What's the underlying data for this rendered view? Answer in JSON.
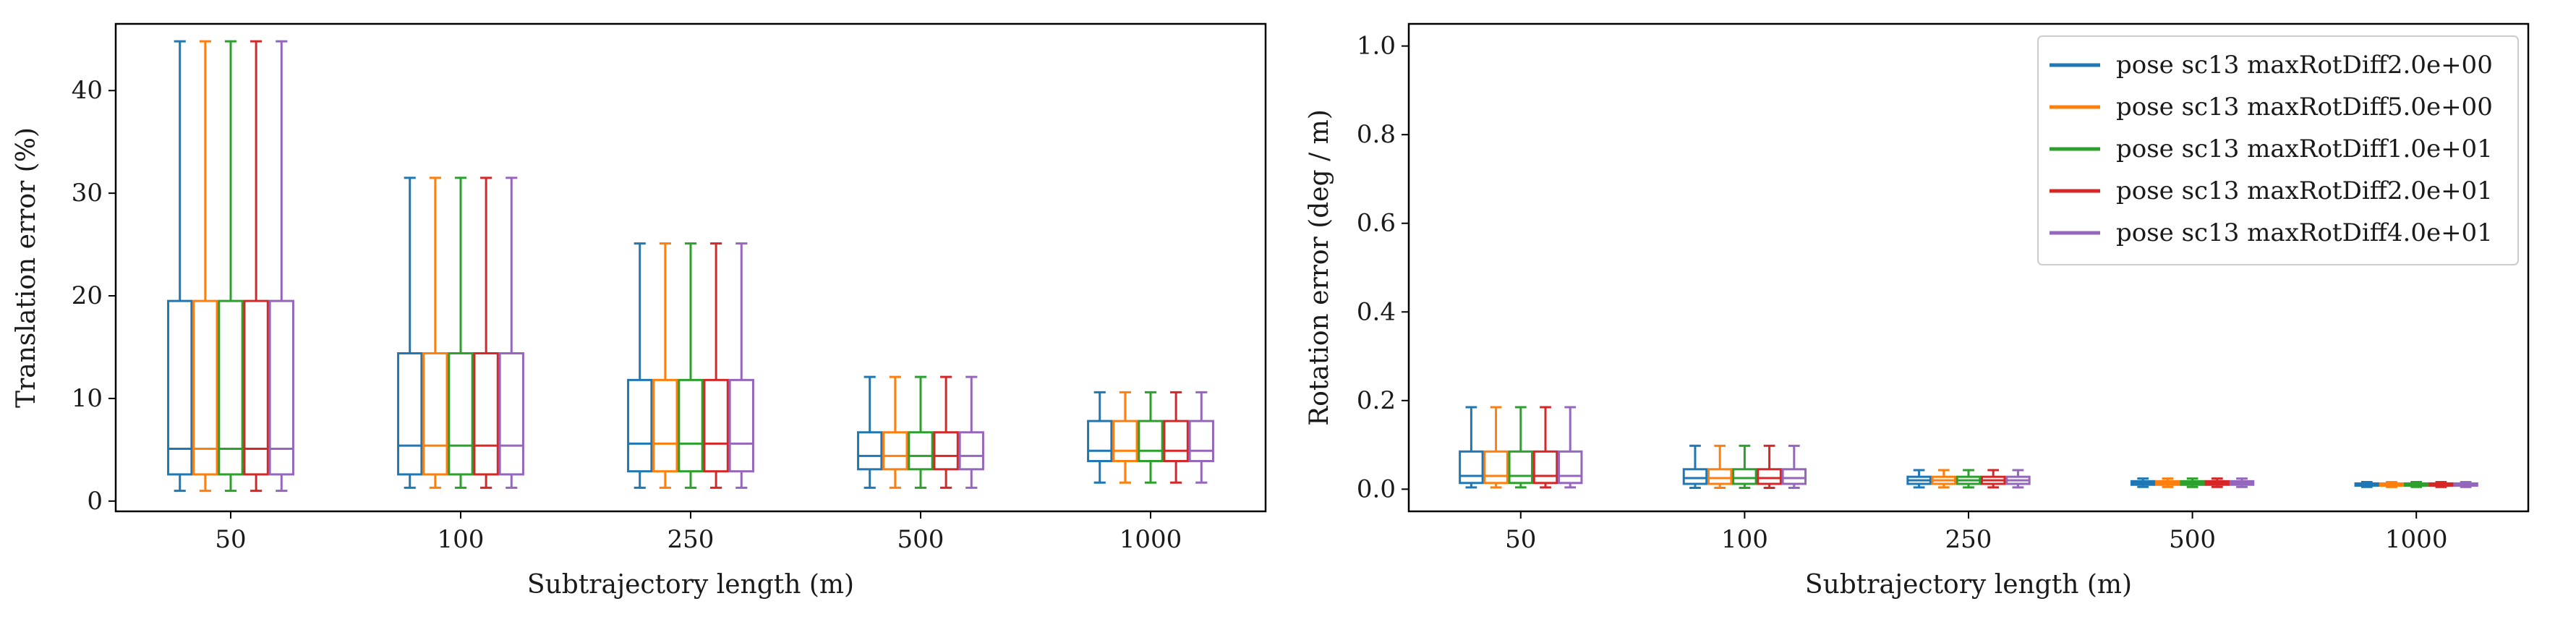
{
  "chart_data": [
    {
      "type": "box",
      "xlabel": "Subtrajectory length (m)",
      "ylabel": "Translation error (%)",
      "categories": [
        "50",
        "100",
        "250",
        "500",
        "1000"
      ],
      "ylim": [
        -1,
        46.5
      ],
      "yticks": [
        0,
        10,
        20,
        30,
        40
      ],
      "grid": false,
      "series": [
        {
          "name": "pose sc13 maxRotDiff2.0e+00",
          "color": "#1f77b4",
          "boxes": [
            {
              "whislo": 1.0,
              "q1": 2.6,
              "med": 5.1,
              "q3": 19.5,
              "whishi": 44.8
            },
            {
              "whislo": 1.3,
              "q1": 2.6,
              "med": 5.4,
              "q3": 14.4,
              "whishi": 31.5
            },
            {
              "whislo": 1.3,
              "q1": 2.9,
              "med": 5.6,
              "q3": 11.8,
              "whishi": 25.1
            },
            {
              "whislo": 1.3,
              "q1": 3.1,
              "med": 4.4,
              "q3": 6.7,
              "whishi": 12.1
            },
            {
              "whislo": 1.8,
              "q1": 3.9,
              "med": 4.9,
              "q3": 7.8,
              "whishi": 10.6
            }
          ]
        },
        {
          "name": "pose sc13 maxRotDiff5.0e+00",
          "color": "#ff7f0e",
          "boxes": [
            {
              "whislo": 1.0,
              "q1": 2.6,
              "med": 5.1,
              "q3": 19.5,
              "whishi": 44.8
            },
            {
              "whislo": 1.3,
              "q1": 2.6,
              "med": 5.4,
              "q3": 14.4,
              "whishi": 31.5
            },
            {
              "whislo": 1.3,
              "q1": 2.9,
              "med": 5.6,
              "q3": 11.8,
              "whishi": 25.1
            },
            {
              "whislo": 1.3,
              "q1": 3.1,
              "med": 4.4,
              "q3": 6.7,
              "whishi": 12.1
            },
            {
              "whislo": 1.8,
              "q1": 3.9,
              "med": 4.9,
              "q3": 7.8,
              "whishi": 10.6
            }
          ]
        },
        {
          "name": "pose sc13 maxRotDiff1.0e+01",
          "color": "#2ca02c",
          "boxes": [
            {
              "whislo": 1.0,
              "q1": 2.6,
              "med": 5.1,
              "q3": 19.5,
              "whishi": 44.8
            },
            {
              "whislo": 1.3,
              "q1": 2.6,
              "med": 5.4,
              "q3": 14.4,
              "whishi": 31.5
            },
            {
              "whislo": 1.3,
              "q1": 2.9,
              "med": 5.6,
              "q3": 11.8,
              "whishi": 25.1
            },
            {
              "whislo": 1.3,
              "q1": 3.1,
              "med": 4.4,
              "q3": 6.7,
              "whishi": 12.1
            },
            {
              "whislo": 1.8,
              "q1": 3.9,
              "med": 4.9,
              "q3": 7.8,
              "whishi": 10.6
            }
          ]
        },
        {
          "name": "pose sc13 maxRotDiff2.0e+01",
          "color": "#d62728",
          "boxes": [
            {
              "whislo": 1.0,
              "q1": 2.6,
              "med": 5.1,
              "q3": 19.5,
              "whishi": 44.8
            },
            {
              "whislo": 1.3,
              "q1": 2.6,
              "med": 5.4,
              "q3": 14.4,
              "whishi": 31.5
            },
            {
              "whislo": 1.3,
              "q1": 2.9,
              "med": 5.6,
              "q3": 11.8,
              "whishi": 25.1
            },
            {
              "whislo": 1.3,
              "q1": 3.1,
              "med": 4.4,
              "q3": 6.7,
              "whishi": 12.1
            },
            {
              "whislo": 1.8,
              "q1": 3.9,
              "med": 4.9,
              "q3": 7.8,
              "whishi": 10.6
            }
          ]
        },
        {
          "name": "pose sc13 maxRotDiff4.0e+01",
          "color": "#9467bd",
          "boxes": [
            {
              "whislo": 1.0,
              "q1": 2.6,
              "med": 5.1,
              "q3": 19.5,
              "whishi": 44.8
            },
            {
              "whislo": 1.3,
              "q1": 2.6,
              "med": 5.4,
              "q3": 14.4,
              "whishi": 31.5
            },
            {
              "whislo": 1.3,
              "q1": 2.9,
              "med": 5.6,
              "q3": 11.8,
              "whishi": 25.1
            },
            {
              "whislo": 1.3,
              "q1": 3.1,
              "med": 4.4,
              "q3": 6.7,
              "whishi": 12.1
            },
            {
              "whislo": 1.8,
              "q1": 3.9,
              "med": 4.9,
              "q3": 7.8,
              "whishi": 10.6
            }
          ]
        }
      ]
    },
    {
      "type": "box",
      "xlabel": "Subtrajectory length (m)",
      "ylabel": "Rotation error (deg / m)",
      "categories": [
        "50",
        "100",
        "250",
        "500",
        "1000"
      ],
      "ylim": [
        -0.05,
        1.05
      ],
      "yticks": [
        0.0,
        0.2,
        0.4,
        0.6,
        0.8,
        1.0
      ],
      "ytick_labels": [
        "0.0",
        "0.2",
        "0.4",
        "0.6",
        "0.8",
        "1.0"
      ],
      "grid": false,
      "legend": "top-right",
      "series": [
        {
          "name": "pose sc13 maxRotDiff2.0e+00",
          "color": "#1f77b4",
          "boxes": [
            {
              "whislo": 0.004,
              "q1": 0.014,
              "med": 0.03,
              "q3": 0.085,
              "whishi": 0.185
            },
            {
              "whislo": 0.003,
              "q1": 0.012,
              "med": 0.025,
              "q3": 0.045,
              "whishi": 0.098
            },
            {
              "whislo": 0.004,
              "q1": 0.012,
              "med": 0.02,
              "q3": 0.028,
              "whishi": 0.043
            },
            {
              "whislo": 0.005,
              "q1": 0.01,
              "med": 0.014,
              "q3": 0.018,
              "whishi": 0.024
            },
            {
              "whislo": 0.005,
              "q1": 0.008,
              "med": 0.01,
              "q3": 0.013,
              "whishi": 0.016
            }
          ]
        },
        {
          "name": "pose sc13 maxRotDiff5.0e+00",
          "color": "#ff7f0e",
          "boxes": [
            {
              "whislo": 0.004,
              "q1": 0.014,
              "med": 0.03,
              "q3": 0.085,
              "whishi": 0.185
            },
            {
              "whislo": 0.003,
              "q1": 0.012,
              "med": 0.025,
              "q3": 0.045,
              "whishi": 0.098
            },
            {
              "whislo": 0.004,
              "q1": 0.012,
              "med": 0.02,
              "q3": 0.028,
              "whishi": 0.043
            },
            {
              "whislo": 0.005,
              "q1": 0.01,
              "med": 0.014,
              "q3": 0.018,
              "whishi": 0.024
            },
            {
              "whislo": 0.005,
              "q1": 0.008,
              "med": 0.01,
              "q3": 0.013,
              "whishi": 0.016
            }
          ]
        },
        {
          "name": "pose sc13 maxRotDiff1.0e+01",
          "color": "#2ca02c",
          "boxes": [
            {
              "whislo": 0.004,
              "q1": 0.014,
              "med": 0.03,
              "q3": 0.085,
              "whishi": 0.185
            },
            {
              "whislo": 0.003,
              "q1": 0.012,
              "med": 0.025,
              "q3": 0.045,
              "whishi": 0.098
            },
            {
              "whislo": 0.004,
              "q1": 0.012,
              "med": 0.02,
              "q3": 0.028,
              "whishi": 0.043
            },
            {
              "whislo": 0.005,
              "q1": 0.01,
              "med": 0.014,
              "q3": 0.018,
              "whishi": 0.024
            },
            {
              "whislo": 0.005,
              "q1": 0.008,
              "med": 0.01,
              "q3": 0.013,
              "whishi": 0.016
            }
          ]
        },
        {
          "name": "pose sc13 maxRotDiff2.0e+01",
          "color": "#d62728",
          "boxes": [
            {
              "whislo": 0.004,
              "q1": 0.014,
              "med": 0.03,
              "q3": 0.085,
              "whishi": 0.185
            },
            {
              "whislo": 0.003,
              "q1": 0.012,
              "med": 0.025,
              "q3": 0.045,
              "whishi": 0.098
            },
            {
              "whislo": 0.004,
              "q1": 0.012,
              "med": 0.02,
              "q3": 0.028,
              "whishi": 0.043
            },
            {
              "whislo": 0.005,
              "q1": 0.01,
              "med": 0.014,
              "q3": 0.018,
              "whishi": 0.024
            },
            {
              "whislo": 0.005,
              "q1": 0.008,
              "med": 0.01,
              "q3": 0.013,
              "whishi": 0.016
            }
          ]
        },
        {
          "name": "pose sc13 maxRotDiff4.0e+01",
          "color": "#9467bd",
          "boxes": [
            {
              "whislo": 0.004,
              "q1": 0.014,
              "med": 0.03,
              "q3": 0.085,
              "whishi": 0.185
            },
            {
              "whislo": 0.003,
              "q1": 0.012,
              "med": 0.025,
              "q3": 0.045,
              "whishi": 0.098
            },
            {
              "whislo": 0.004,
              "q1": 0.012,
              "med": 0.02,
              "q3": 0.028,
              "whishi": 0.043
            },
            {
              "whislo": 0.005,
              "q1": 0.01,
              "med": 0.014,
              "q3": 0.018,
              "whishi": 0.024
            },
            {
              "whislo": 0.005,
              "q1": 0.008,
              "med": 0.01,
              "q3": 0.013,
              "whishi": 0.016
            }
          ]
        }
      ]
    }
  ]
}
